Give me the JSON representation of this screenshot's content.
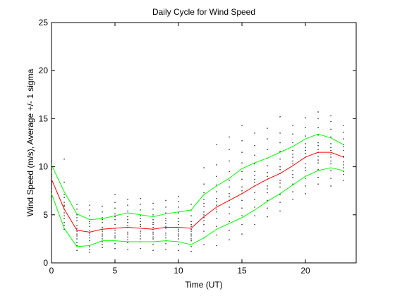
{
  "chart_data": {
    "type": "line",
    "title": "Daily Cycle for Wind Speed",
    "xlabel": "Time (UT)",
    "ylabel": "Wind Speed (m/s), Average +/- 1 sigma",
    "xlim": [
      0,
      24
    ],
    "ylim": [
      0,
      25
    ],
    "xticks": [
      0,
      5,
      10,
      15,
      20
    ],
    "yticks": [
      0,
      5,
      10,
      15,
      20,
      25
    ],
    "grid": false,
    "x": [
      0,
      1,
      2,
      3,
      4,
      5,
      6,
      7,
      8,
      9,
      10,
      11,
      12,
      13,
      14,
      15,
      16,
      17,
      18,
      19,
      20,
      21,
      22,
      23
    ],
    "series": [
      {
        "role": "mean+1sigma",
        "color": "#00ff00",
        "values": [
          10.2,
          7.4,
          5.1,
          4.5,
          4.6,
          4.9,
          5.2,
          5.0,
          4.8,
          5.1,
          5.3,
          5.5,
          7.1,
          8.0,
          8.8,
          9.8,
          10.4,
          10.9,
          11.5,
          12.1,
          12.9,
          13.4,
          13.0,
          12.3
        ]
      },
      {
        "role": "mean",
        "color": "#ff0000",
        "values": [
          8.7,
          5.6,
          3.4,
          3.2,
          3.5,
          3.6,
          3.7,
          3.6,
          3.5,
          3.7,
          3.7,
          3.6,
          4.8,
          5.8,
          6.5,
          7.2,
          8.0,
          8.7,
          9.3,
          10.1,
          11.0,
          11.5,
          11.5,
          11.0
        ]
      },
      {
        "role": "mean-1sigma",
        "color": "#00ff00",
        "values": [
          7.2,
          3.6,
          1.7,
          1.8,
          2.3,
          2.3,
          2.2,
          2.2,
          2.2,
          2.3,
          2.2,
          1.9,
          2.6,
          3.5,
          4.1,
          4.7,
          5.5,
          6.4,
          7.2,
          8.1,
          9.0,
          9.6,
          9.9,
          9.6
        ]
      }
    ],
    "scatter": {
      "color": "#000000",
      "points_per_hour": [
        [
          8.5,
          9.2,
          7.8,
          10.1,
          6.9,
          8.8,
          9.7,
          7.4,
          8.1,
          10.6,
          9.0,
          8.3
        ],
        [
          4.2,
          5.9,
          6.8,
          3.5,
          7.1,
          5.2,
          4.6,
          6.3,
          8.4,
          5.6,
          3.9,
          10.8,
          6.0,
          4.9
        ],
        [
          1.3,
          2.1,
          2.8,
          3.3,
          3.9,
          4.4,
          5.0,
          5.6,
          2.5,
          3.6,
          1.8,
          4.7,
          6.1,
          3.0
        ],
        [
          1.1,
          1.7,
          2.3,
          2.9,
          3.4,
          3.8,
          4.3,
          4.9,
          5.5,
          6.0,
          2.6,
          3.1,
          1.4,
          4.1
        ],
        [
          1.6,
          2.2,
          2.8,
          3.3,
          3.7,
          4.2,
          4.7,
          5.3,
          5.9,
          2.5,
          3.0,
          3.5,
          4.5,
          1.9
        ],
        [
          1.5,
          2.0,
          2.6,
          3.1,
          3.6,
          4.0,
          4.5,
          5.1,
          5.7,
          6.3,
          7.1,
          2.8,
          3.4,
          4.8
        ],
        [
          1.4,
          2.1,
          2.7,
          3.2,
          3.7,
          4.2,
          4.8,
          5.4,
          6.0,
          6.6,
          2.4,
          3.0,
          3.9,
          4.5
        ],
        [
          1.5,
          2.2,
          2.8,
          3.3,
          3.8,
          4.3,
          4.9,
          5.5,
          6.1,
          6.7,
          2.5,
          3.1,
          4.0,
          4.6
        ],
        [
          1.3,
          1.9,
          2.5,
          3.0,
          3.5,
          4.0,
          4.5,
          5.0,
          5.6,
          6.2,
          2.7,
          3.2,
          4.2,
          3.7
        ],
        [
          1.4,
          2.0,
          2.6,
          3.1,
          3.6,
          4.1,
          4.6,
          5.2,
          5.8,
          6.5,
          2.3,
          2.9,
          3.8,
          4.4
        ],
        [
          1.3,
          1.9,
          2.5,
          3.0,
          3.5,
          4.0,
          4.6,
          5.2,
          5.8,
          6.4,
          6.9,
          2.8,
          3.3,
          4.3
        ],
        [
          1.2,
          1.7,
          2.3,
          2.8,
          3.3,
          3.8,
          4.3,
          4.9,
          5.5,
          6.1,
          2.5,
          3.0,
          4.0,
          3.5
        ],
        [
          1.9,
          2.6,
          3.3,
          4.0,
          4.7,
          5.3,
          5.9,
          6.6,
          7.3,
          8.2,
          9.9,
          4.4,
          5.0,
          6.2
        ],
        [
          1.8,
          2.9,
          3.8,
          4.6,
          5.3,
          6.0,
          6.7,
          7.4,
          8.1,
          9.0,
          10.2,
          12.3,
          5.6,
          6.4
        ],
        [
          2.4,
          3.4,
          4.3,
          5.1,
          5.8,
          6.5,
          7.2,
          7.9,
          8.6,
          9.5,
          10.6,
          11.8,
          13.1,
          6.9
        ],
        [
          3.0,
          4.0,
          4.9,
          5.7,
          6.5,
          7.2,
          7.9,
          8.7,
          9.5,
          10.4,
          11.5,
          12.7,
          14.3,
          7.5
        ],
        [
          4.0,
          4.9,
          5.8,
          6.6,
          7.3,
          8.0,
          8.7,
          9.5,
          10.3,
          11.2,
          12.2,
          13.5,
          8.4,
          9.1
        ],
        [
          4.8,
          5.7,
          6.5,
          7.3,
          8.0,
          8.7,
          9.4,
          10.1,
          10.9,
          11.8,
          12.9,
          14.0,
          9.0,
          7.7
        ],
        [
          5.4,
          6.3,
          7.1,
          7.9,
          8.6,
          9.3,
          10.0,
          10.8,
          11.6,
          12.5,
          13.5,
          15.2,
          9.7,
          8.3
        ],
        [
          6.6,
          7.4,
          8.2,
          8.9,
          9.6,
          10.3,
          11.0,
          11.7,
          12.5,
          13.4,
          14.3,
          9.2,
          10.6,
          11.3
        ],
        [
          7.2,
          8.0,
          8.8,
          9.6,
          10.3,
          11.0,
          11.7,
          12.4,
          13.2,
          14.1,
          15.1,
          9.9,
          11.4,
          12.0
        ],
        [
          8.2,
          8.9,
          9.7,
          10.4,
          11.1,
          11.8,
          12.5,
          13.3,
          14.1,
          15.0,
          15.7,
          10.7,
          12.2,
          11.5
        ],
        [
          8.0,
          8.8,
          9.6,
          10.3,
          11.0,
          11.7,
          12.4,
          13.1,
          13.9,
          14.7,
          15.3,
          10.6,
          12.0,
          11.3
        ],
        [
          8.6,
          9.2,
          9.9,
          10.5,
          11.1,
          11.7,
          12.3,
          12.9,
          13.6,
          14.3,
          10.2,
          11.0,
          12.1,
          9.5
        ]
      ]
    }
  }
}
